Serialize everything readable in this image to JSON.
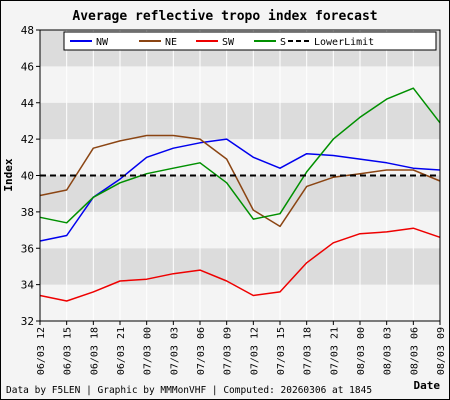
{
  "chart_data": {
    "type": "line",
    "title": "Average reflective tropo index forecast",
    "ylabel": "Index",
    "xlabel": "Date",
    "ylim": [
      32,
      48
    ],
    "yticks": [
      32,
      34,
      36,
      38,
      40,
      42,
      44,
      46,
      48
    ],
    "categories": [
      "06/03 12",
      "06/03 15",
      "06/03 18",
      "06/03 21",
      "07/03 00",
      "07/03 03",
      "07/03 06",
      "07/03 09",
      "07/03 12",
      "07/03 15",
      "07/03 18",
      "07/03 21",
      "08/03 00",
      "08/03 03",
      "08/03 06",
      "08/03 09"
    ],
    "legend_position": "top",
    "series": [
      {
        "name": "NW",
        "color": "#0000ee",
        "values": [
          36.4,
          36.7,
          38.8,
          39.8,
          41.0,
          41.5,
          41.8,
          42.0,
          41.0,
          40.4,
          41.2,
          41.1,
          40.9,
          40.7,
          40.4,
          40.3
        ]
      },
      {
        "name": "NE",
        "color": "#8b4513",
        "values": [
          38.9,
          39.2,
          41.5,
          41.9,
          42.2,
          42.2,
          42.0,
          40.9,
          38.1,
          37.2,
          39.4,
          39.9,
          40.1,
          40.3,
          40.3,
          39.7
        ]
      },
      {
        "name": "SW",
        "color": "#ee0000",
        "values": [
          33.4,
          33.1,
          33.6,
          34.2,
          34.3,
          34.6,
          34.8,
          34.2,
          33.4,
          33.6,
          35.2,
          36.3,
          36.8,
          36.9,
          37.1,
          36.6
        ]
      },
      {
        "name": "S",
        "color": "#009000",
        "values": [
          37.7,
          37.4,
          38.8,
          39.6,
          40.1,
          40.4,
          40.7,
          39.6,
          37.6,
          37.9,
          40.2,
          42.0,
          43.2,
          44.2,
          44.8,
          42.9
        ]
      },
      {
        "name": "LowerLimit",
        "color": "#000000",
        "dashed": true,
        "values": [
          40.0,
          40.0,
          40.0,
          40.0,
          40.0,
          40.0,
          40.0,
          40.0,
          40.0,
          40.0,
          40.0,
          40.0,
          40.0,
          40.0,
          40.0,
          40.0
        ]
      }
    ]
  },
  "footer": "Data by F5LEN | Graphic by MMMonVHF | Computed: 20260306 at 1845",
  "colors": {
    "band_dark": "#dcdcdc",
    "band_light": "#f4f4f4",
    "page_bg": "#f4f4f4"
  }
}
